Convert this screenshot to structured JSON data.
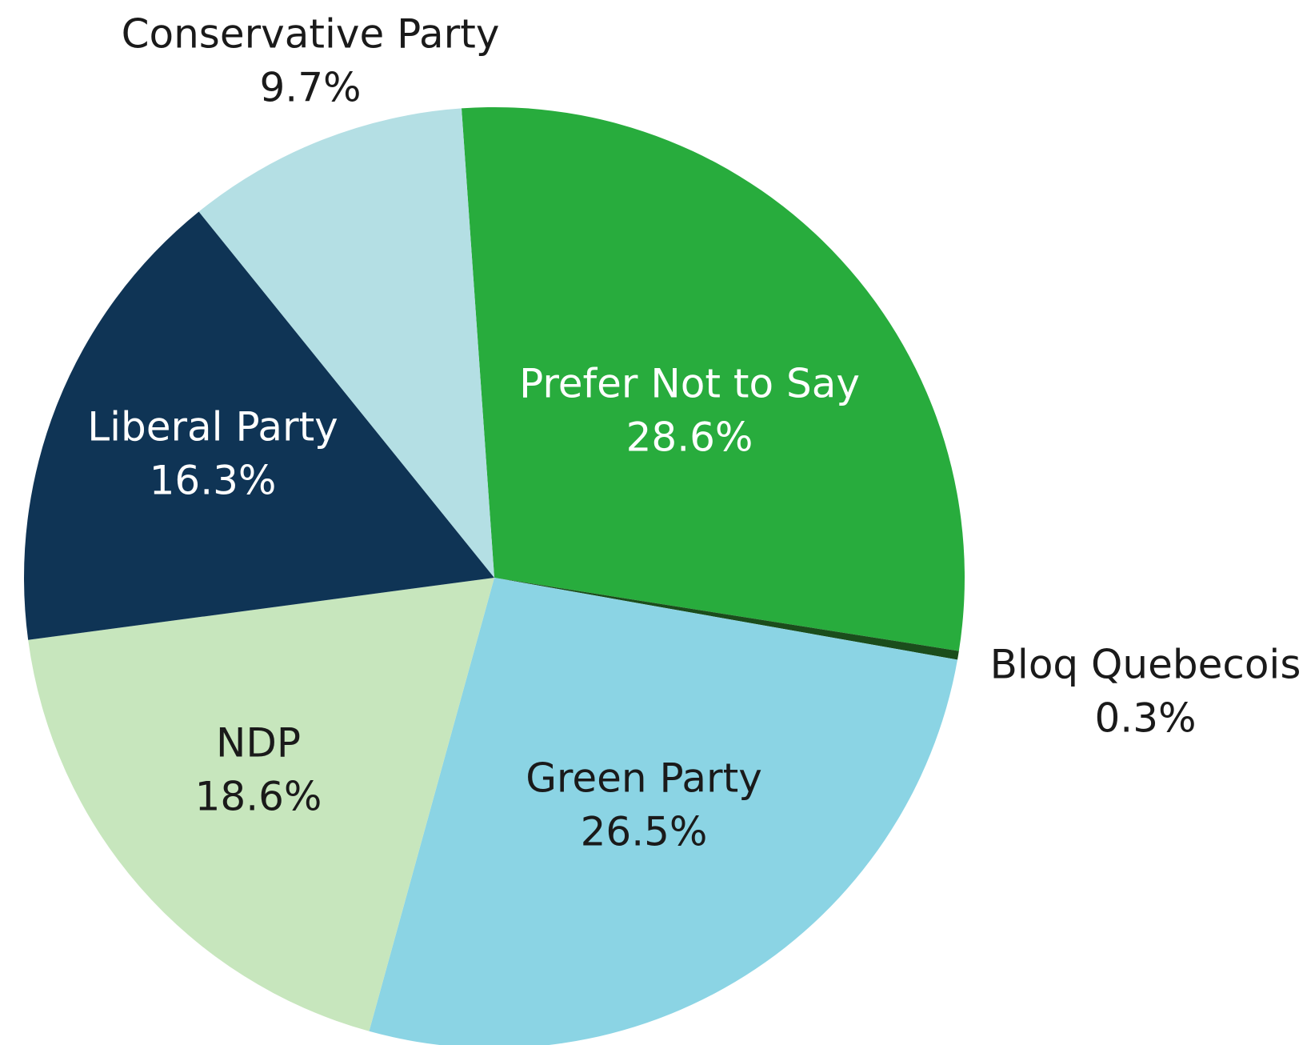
{
  "chart_data": {
    "type": "pie",
    "title": "",
    "slices": [
      {
        "label": "Prefer Not to Say",
        "value": 28.6,
        "value_label": "28.6%",
        "color": "#28ac3d",
        "text_color": "#ffffff"
      },
      {
        "label": "Bloq Quebecois",
        "value": 0.3,
        "value_label": "0.3%",
        "color": "#1b4d1c",
        "text_color": "#1a1a1a"
      },
      {
        "label": "Green Party",
        "value": 26.5,
        "value_label": "26.5%",
        "color": "#8bd4e4",
        "text_color": "#1a1a1a"
      },
      {
        "label": "NDP",
        "value": 18.6,
        "value_label": "18.6%",
        "color": "#c7e6bd",
        "text_color": "#1a1a1a"
      },
      {
        "label": "Liberal Party",
        "value": 16.3,
        "value_label": "16.3%",
        "color": "#0f3455",
        "text_color": "#ffffff"
      },
      {
        "label": "Conservative Party",
        "value": 9.7,
        "value_label": "9.7%",
        "color": "#b4dfe4",
        "text_color": "#1a1a1a"
      }
    ]
  }
}
